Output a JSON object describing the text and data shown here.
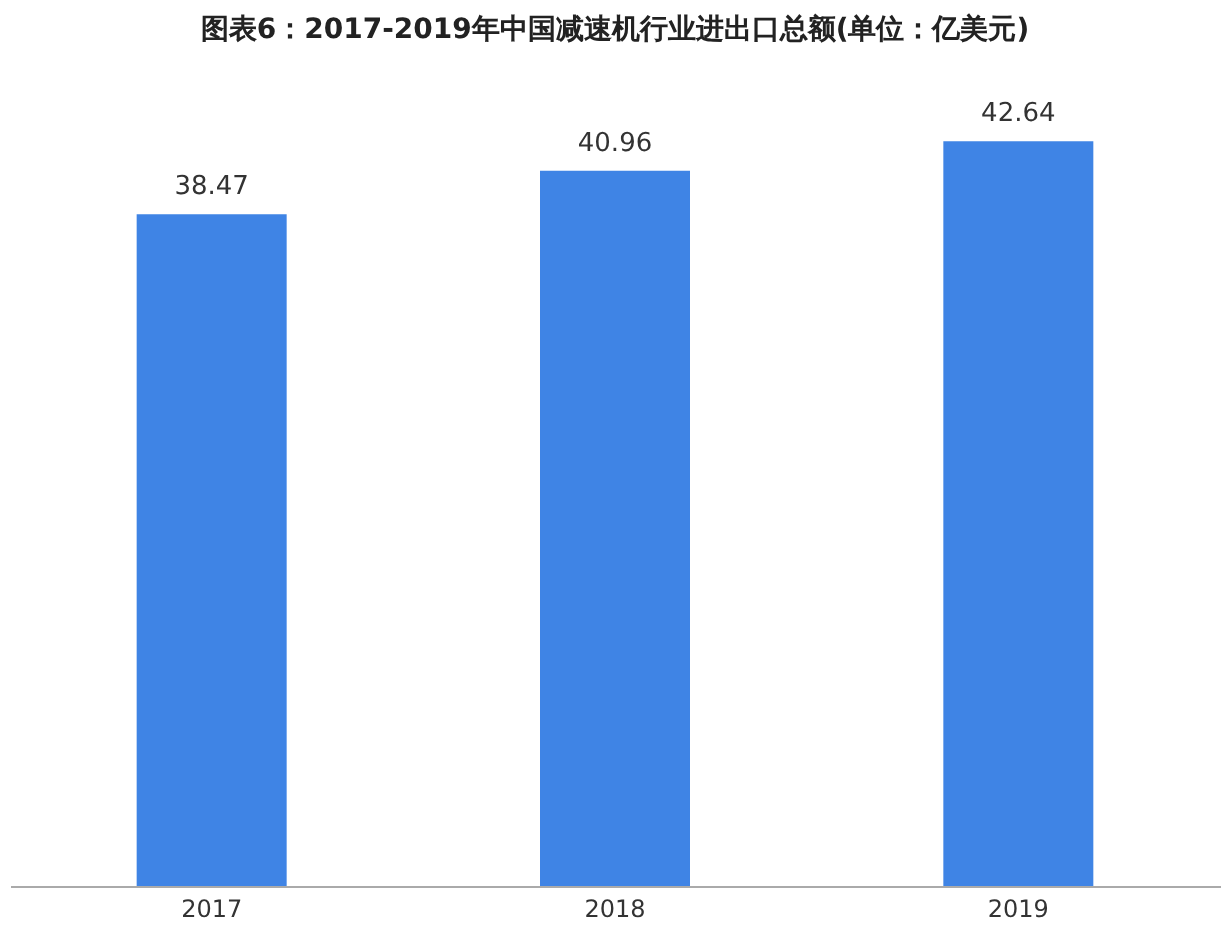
{
  "chart_data": {
    "type": "bar",
    "title": "图表6：2017-2019年中国减速机行业进出口总额(单位：亿美元)",
    "categories": [
      "2017",
      "2018",
      "2019"
    ],
    "values": [
      38.47,
      40.96,
      42.64
    ],
    "color": "#3f84e5",
    "data_labels": true
  }
}
